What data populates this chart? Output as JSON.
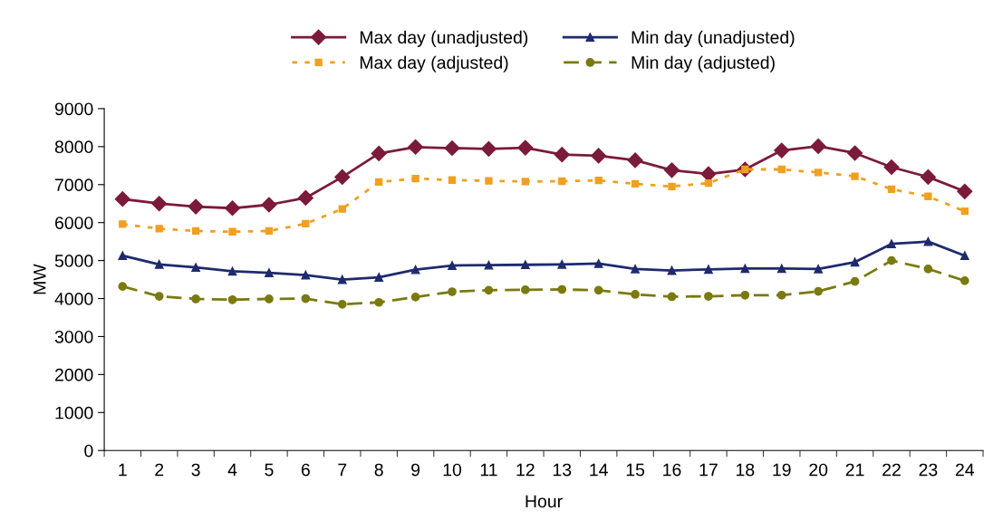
{
  "chart_data": {
    "type": "line",
    "xlabel": "Hour",
    "ylabel": "MW",
    "categories": [
      "1",
      "2",
      "3",
      "4",
      "5",
      "6",
      "7",
      "8",
      "9",
      "10",
      "11",
      "12",
      "13",
      "14",
      "15",
      "16",
      "17",
      "18",
      "19",
      "20",
      "21",
      "22",
      "23",
      "24"
    ],
    "ylim": [
      0,
      9000
    ],
    "yticks": [
      0,
      1000,
      2000,
      3000,
      4000,
      5000,
      6000,
      7000,
      8000,
      9000
    ],
    "grid": false,
    "legend": "top",
    "series": [
      {
        "name": "Max day (unadjusted)",
        "color": "#7b1a3a",
        "marker": "diamond",
        "line_style": "solid",
        "values": [
          6620,
          6500,
          6420,
          6380,
          6470,
          6650,
          7200,
          7820,
          7990,
          7960,
          7940,
          7970,
          7790,
          7760,
          7640,
          7380,
          7280,
          7400,
          7900,
          8010,
          7830,
          7460,
          7200,
          6820
        ]
      },
      {
        "name": "Max day (adjusted)",
        "color": "#f0a020",
        "marker": "square",
        "line_style": "dotted",
        "values": [
          5960,
          5840,
          5780,
          5760,
          5780,
          5970,
          6360,
          7070,
          7160,
          7120,
          7100,
          7080,
          7090,
          7110,
          7020,
          6950,
          7040,
          7400,
          7400,
          7320,
          7220,
          6880,
          6690,
          6300
        ]
      },
      {
        "name": "Min day (unadjusted)",
        "color": "#1f2a6e",
        "marker": "triangle",
        "line_style": "solid",
        "values": [
          5130,
          4900,
          4820,
          4720,
          4680,
          4620,
          4500,
          4560,
          4760,
          4870,
          4880,
          4890,
          4900,
          4920,
          4780,
          4740,
          4770,
          4790,
          4790,
          4780,
          4960,
          5440,
          5500,
          5130
        ]
      },
      {
        "name": "Min day (adjusted)",
        "color": "#7a7a10",
        "marker": "circle",
        "line_style": "dashed",
        "values": [
          4320,
          4060,
          3990,
          3970,
          3990,
          4000,
          3850,
          3900,
          4040,
          4180,
          4220,
          4230,
          4240,
          4220,
          4110,
          4050,
          4060,
          4090,
          4090,
          4190,
          4450,
          5000,
          4780,
          4470
        ]
      }
    ]
  }
}
